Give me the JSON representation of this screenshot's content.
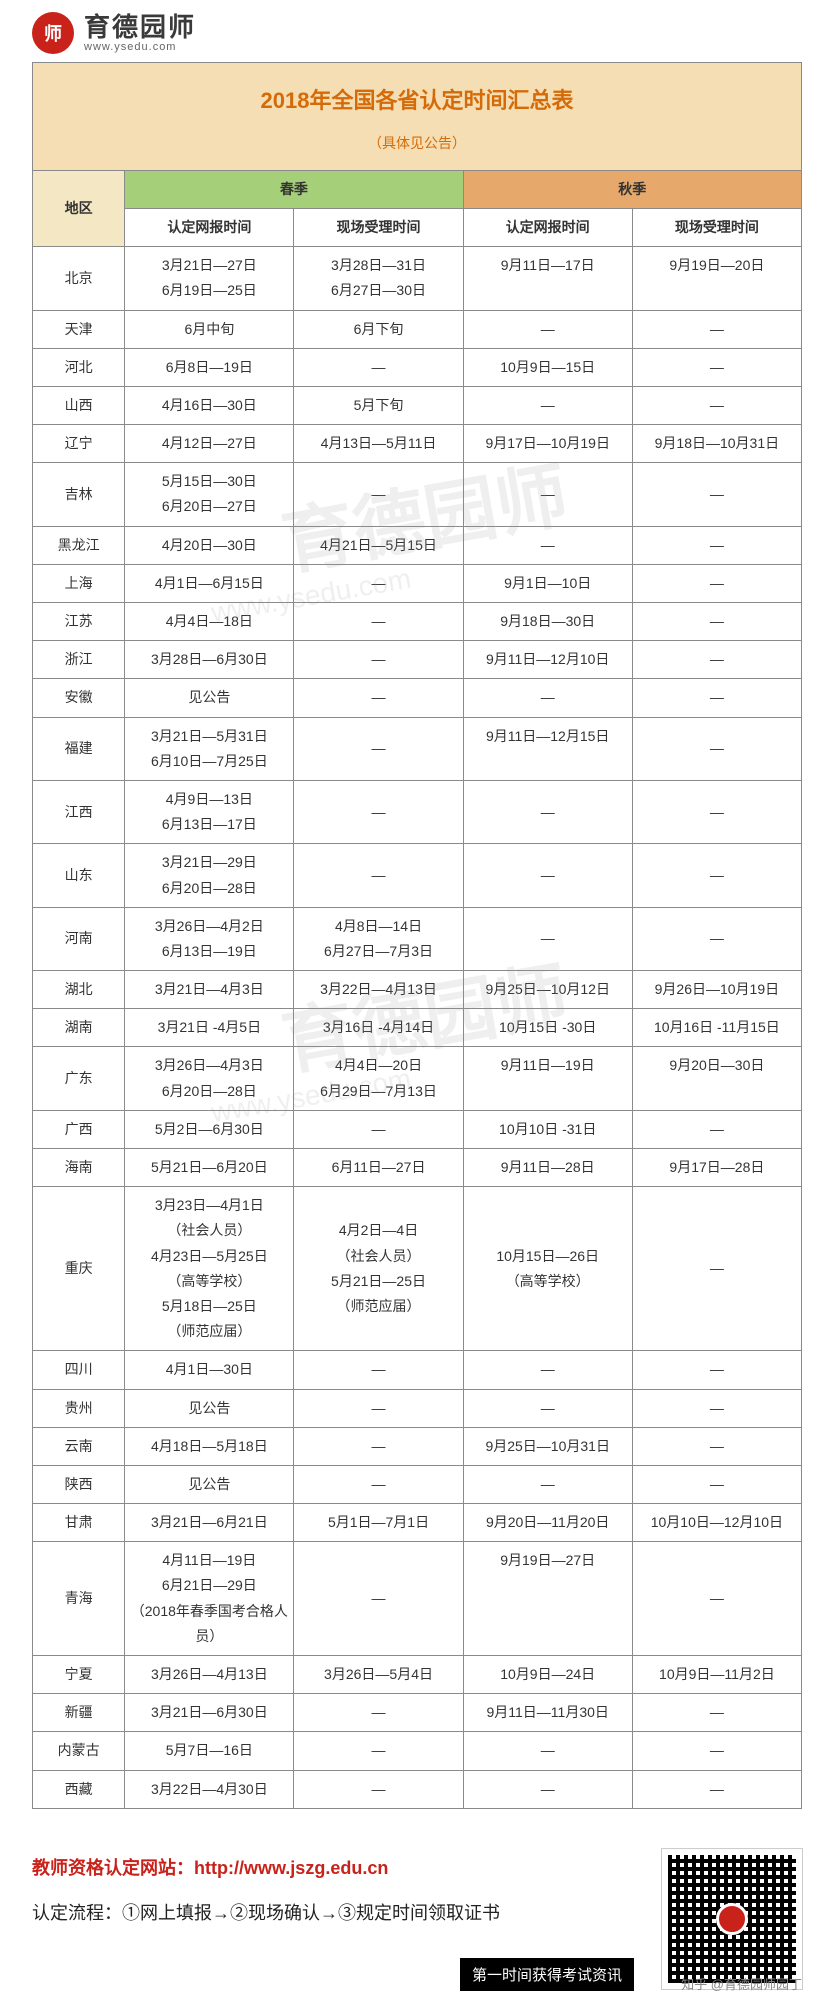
{
  "logo": {
    "cn": "育德园师",
    "url": "www.ysedu.com",
    "badge": "师"
  },
  "title": "2018年全国各省认定时间汇总表",
  "subtitle": "（具体见公告）",
  "headers": {
    "region": "地区",
    "spring": "春季",
    "autumn": "秋季",
    "sub": [
      "认定网报时间",
      "现场受理时间",
      "认定网报时间",
      "现场受理时间"
    ]
  },
  "rows": [
    {
      "region": "北京",
      "c": [
        "3月21日—27日\n6月19日—25日",
        "3月28日—31日\n6月27日—30日",
        "9月11日—17日",
        "9月19日—20日"
      ]
    },
    {
      "region": "天津",
      "c": [
        "6月中旬",
        "6月下旬",
        "—",
        "—"
      ]
    },
    {
      "region": "河北",
      "c": [
        "6月8日—19日",
        "—",
        "10月9日—15日",
        "—"
      ]
    },
    {
      "region": "山西",
      "c": [
        "4月16日—30日",
        "5月下旬",
        "—",
        "—"
      ]
    },
    {
      "region": "辽宁",
      "c": [
        "4月12日—27日",
        "4月13日—5月11日",
        "9月17日—10月19日",
        "9月18日—10月31日"
      ]
    },
    {
      "region": "吉林",
      "c": [
        "5月15日—30日\n6月20日—27日",
        "—",
        "—",
        "—"
      ]
    },
    {
      "region": "黑龙江",
      "c": [
        "4月20日—30日",
        "4月21日—5月15日",
        "—",
        "—"
      ]
    },
    {
      "region": "上海",
      "c": [
        "4月1日—6月15日",
        "—",
        "9月1日—10日",
        "—"
      ]
    },
    {
      "region": "江苏",
      "c": [
        "4月4日—18日",
        "—",
        "9月18日—30日",
        "—"
      ]
    },
    {
      "region": "浙江",
      "c": [
        "3月28日—6月30日",
        "—",
        "9月11日—12月10日",
        "—"
      ]
    },
    {
      "region": "安徽",
      "c": [
        "见公告",
        "—",
        "—",
        "—"
      ]
    },
    {
      "region": "福建",
      "c": [
        "3月21日—5月31日\n6月10日—7月25日",
        "—",
        "9月11日—12月15日",
        "—"
      ]
    },
    {
      "region": "江西",
      "c": [
        "4月9日—13日\n6月13日—17日",
        "—",
        "—",
        "—"
      ]
    },
    {
      "region": "山东",
      "c": [
        "3月21日—29日\n6月20日—28日",
        "—",
        "—",
        "—"
      ]
    },
    {
      "region": "河南",
      "c": [
        "3月26日—4月2日\n6月13日—19日",
        "4月8日—14日\n6月27日—7月3日",
        "—",
        "—"
      ]
    },
    {
      "region": "湖北",
      "c": [
        "3月21日—4月3日",
        "3月22日—4月13日",
        "9月25日—10月12日",
        "9月26日—10月19日"
      ]
    },
    {
      "region": "湖南",
      "c": [
        "3月21日 -4月5日",
        "3月16日 -4月14日",
        "10月15日 -30日",
        "10月16日 -11月15日"
      ]
    },
    {
      "region": "广东",
      "c": [
        "3月26日—4月3日\n6月20日—28日",
        "4月4日—20日\n6月29日—7月13日",
        "9月11日—19日",
        "9月20日—30日"
      ]
    },
    {
      "region": "广西",
      "c": [
        "5月2日—6月30日",
        "—",
        "10月10日 -31日",
        "—"
      ]
    },
    {
      "region": "海南",
      "c": [
        "5月21日—6月20日",
        "6月11日—27日",
        "9月11日—28日",
        "9月17日—28日"
      ]
    },
    {
      "region": "重庆",
      "c": [
        "3月23日—4月1日\n（社会人员）\n4月23日—5月25日\n（高等学校）\n5月18日—25日\n（师范应届）",
        "4月2日—4日\n（社会人员）\n5月21日—25日\n（师范应届）",
        "10月15日—26日\n（高等学校）",
        "—"
      ]
    },
    {
      "region": "四川",
      "c": [
        "4月1日—30日",
        "—",
        "—",
        "—"
      ]
    },
    {
      "region": "贵州",
      "c": [
        "见公告",
        "—",
        "—",
        "—"
      ]
    },
    {
      "region": "云南",
      "c": [
        "4月18日—5月18日",
        "—",
        "9月25日—10月31日",
        "—"
      ]
    },
    {
      "region": "陕西",
      "c": [
        "见公告",
        "—",
        "—",
        "—"
      ]
    },
    {
      "region": "甘肃",
      "c": [
        "3月21日—6月21日",
        "5月1日—7月1日",
        "9月20日—11月20日",
        "10月10日—12月10日"
      ]
    },
    {
      "region": "青海",
      "c": [
        "4月11日—19日\n6月21日—29日\n（2018年春季国考合格人员）",
        "—",
        "9月19日—27日",
        "—"
      ]
    },
    {
      "region": "宁夏",
      "c": [
        "3月26日—4月13日",
        "3月26日—5月4日",
        "10月9日—24日",
        "10月9日—11月2日"
      ]
    },
    {
      "region": "新疆",
      "c": [
        "3月21日—6月30日",
        "—",
        "9月11日—11月30日",
        "—"
      ]
    },
    {
      "region": "内蒙古",
      "c": [
        "5月7日—16日",
        "—",
        "—",
        "—"
      ]
    },
    {
      "region": "西藏",
      "c": [
        "3月22日—4月30日",
        "—",
        "—",
        "—"
      ]
    }
  ],
  "footer": {
    "website_label": "教师资格认定网站：",
    "website_url": "http://www.jszg.edu.cn",
    "process": "认定流程：①网上填报→②现场确认→③规定时间领取证书",
    "banner": "第一时间获得考试资讯",
    "credit": "知乎 @育德园师园丁"
  },
  "colors": {
    "title_bg": "#f5deb3",
    "title_fg": "#d46b08",
    "spring_bg": "#a6cf7a",
    "autumn_bg": "#e6a96b",
    "region_bg": "#f4e7c4",
    "border": "#8a8a8a",
    "brand": "#c8221a"
  },
  "watermark": {
    "text": "育德园师",
    "url": "www.ysedu.com"
  }
}
